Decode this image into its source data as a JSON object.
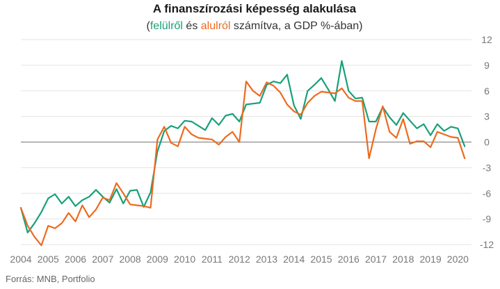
{
  "colors": {
    "green": "#16A07A",
    "orange": "#EC6A1E",
    "grid": "#E3E3E3",
    "zero_line": "#8C8C8C",
    "text": "#333333",
    "tick": "#777777"
  },
  "chart_data": {
    "type": "line",
    "title": "A finanszírozási képesség alakulása",
    "subtitle_parts": {
      "open": "(",
      "series1": "felülről",
      "mid1": " és ",
      "series2": "alulról",
      "rest": " számítva, a GDP %-ában)"
    },
    "ylim": [
      -12,
      12
    ],
    "yticks": [
      "12",
      "9",
      "6",
      "3",
      "0",
      "-3",
      "-6",
      "-9",
      "-12"
    ],
    "ytick_values": [
      12,
      9,
      6,
      3,
      0,
      -3,
      -6,
      -9,
      -12
    ],
    "xlim": [
      2004,
      2020.5
    ],
    "xticks": [
      "2004",
      "2005",
      "2006",
      "2007",
      "2008",
      "2009",
      "2010",
      "2011",
      "2012",
      "2013",
      "2014",
      "2015",
      "2016",
      "2017",
      "2018",
      "2019",
      "2020"
    ],
    "xtick_values": [
      2004,
      2005,
      2006,
      2007,
      2008,
      2009,
      2010,
      2011,
      2012,
      2013,
      2014,
      2015,
      2016,
      2017,
      2018,
      2019,
      2020
    ],
    "grid": "horizontal",
    "x": [
      2004.0,
      2004.25,
      2004.5,
      2004.75,
      2005.0,
      2005.25,
      2005.5,
      2005.75,
      2006.0,
      2006.25,
      2006.5,
      2006.75,
      2007.0,
      2007.25,
      2007.5,
      2007.75,
      2008.0,
      2008.25,
      2008.5,
      2008.75,
      2009.0,
      2009.25,
      2009.5,
      2009.75,
      2010.0,
      2010.25,
      2010.5,
      2010.75,
      2011.0,
      2011.25,
      2011.5,
      2011.75,
      2012.0,
      2012.25,
      2012.5,
      2012.75,
      2013.0,
      2013.25,
      2013.5,
      2013.75,
      2014.0,
      2014.25,
      2014.5,
      2014.75,
      2015.0,
      2015.25,
      2015.5,
      2015.75,
      2016.0,
      2016.25,
      2016.5,
      2016.75,
      2017.0,
      2017.25,
      2017.5,
      2017.75,
      2018.0,
      2018.25,
      2018.5,
      2018.75,
      2019.0,
      2019.25,
      2019.5,
      2019.75,
      2020.0,
      2020.25
    ],
    "series": [
      {
        "color": "#16A07A",
        "values": [
          -7.7,
          -10.6,
          -9.5,
          -8.2,
          -6.6,
          -6.1,
          -7.2,
          -6.4,
          -7.5,
          -6.8,
          -6.4,
          -5.6,
          -6.4,
          -7.1,
          -5.5,
          -7.2,
          -5.7,
          -5.6,
          -7.6,
          -5.9,
          -1.1,
          1.3,
          1.9,
          1.6,
          2.5,
          2.4,
          1.9,
          1.4,
          2.8,
          2.0,
          3.1,
          3.3,
          2.4,
          4.4,
          4.5,
          4.6,
          6.7,
          7.1,
          6.9,
          7.9,
          4.3,
          2.7,
          6.0,
          6.7,
          7.5,
          6.2,
          4.8,
          9.5,
          6.0,
          5.1,
          5.2,
          2.4,
          2.4,
          4.1,
          2.9,
          2.0,
          3.4,
          2.5,
          1.6,
          2.1,
          0.8,
          2.1,
          1.3,
          1.8,
          1.6,
          -0.5
        ]
      },
      {
        "color": "#EC6A1E",
        "values": [
          -7.7,
          -9.8,
          -11.1,
          -12.1,
          -9.8,
          -10.1,
          -9.5,
          -8.3,
          -9.3,
          -7.4,
          -8.8,
          -7.9,
          -6.5,
          -6.8,
          -4.8,
          -6.0,
          -7.3,
          -7.4,
          -7.5,
          -7.7,
          0.3,
          1.8,
          -0.1,
          -0.5,
          1.8,
          0.9,
          0.5,
          0.4,
          0.3,
          -0.3,
          0.6,
          1.2,
          0.0,
          7.1,
          6.0,
          5.4,
          7.0,
          6.6,
          5.8,
          4.4,
          3.6,
          3.2,
          4.6,
          5.4,
          5.9,
          5.8,
          5.7,
          6.3,
          5.2,
          4.8,
          4.8,
          -1.9,
          1.5,
          4.2,
          1.2,
          0.5,
          2.7,
          -0.2,
          0.1,
          0.1,
          -0.6,
          1.2,
          0.9,
          0.6,
          0.5,
          -1.9
        ]
      }
    ]
  },
  "source": "Forrás: MNB, Portfolio"
}
